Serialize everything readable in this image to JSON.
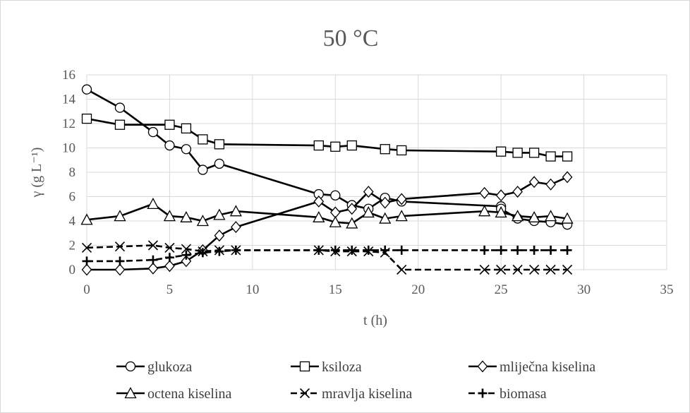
{
  "chart_data": {
    "type": "line",
    "title": "50 °C",
    "xlabel": "t (h)",
    "ylabel": "γ (g L⁻¹)",
    "xlim": [
      0,
      35
    ],
    "ylim": [
      0,
      16
    ],
    "x_ticks": [
      "0",
      "5",
      "10",
      "15",
      "20",
      "25",
      "30",
      "35"
    ],
    "y_ticks": [
      "0",
      "2",
      "4",
      "6",
      "8",
      "10",
      "12",
      "14",
      "16"
    ],
    "grid": "vertical and horizontal gridlines",
    "legend_position": "bottom",
    "series": [
      {
        "name": "glukoza",
        "marker": "circle",
        "line_style": "solid",
        "points": [
          [
            0,
            14.8
          ],
          [
            2,
            13.3
          ],
          [
            4,
            11.3
          ],
          [
            5,
            10.2
          ],
          [
            6,
            9.9
          ],
          [
            7,
            8.2
          ],
          [
            8,
            8.7
          ],
          [
            14,
            6.2
          ],
          [
            15,
            6.1
          ],
          [
            16,
            5.3
          ],
          [
            17,
            5.0
          ],
          [
            18,
            5.9
          ],
          [
            19,
            5.6
          ],
          [
            25,
            5.2
          ],
          [
            25,
            5.0
          ],
          [
            26,
            4.2
          ],
          [
            27,
            4.0
          ],
          [
            28,
            3.9
          ],
          [
            29,
            3.7
          ]
        ]
      },
      {
        "name": "ksiloza",
        "marker": "square",
        "line_style": "solid",
        "points": [
          [
            0,
            12.4
          ],
          [
            2,
            11.9
          ],
          [
            5,
            11.9
          ],
          [
            6,
            11.6
          ],
          [
            7,
            10.7
          ],
          [
            8,
            10.3
          ],
          [
            14,
            10.2
          ],
          [
            15,
            10.1
          ],
          [
            16,
            10.2
          ],
          [
            18,
            9.9
          ],
          [
            19,
            9.8
          ],
          [
            25,
            9.7
          ],
          [
            26,
            9.6
          ],
          [
            27,
            9.6
          ],
          [
            28,
            9.3
          ],
          [
            29,
            9.3
          ]
        ]
      },
      {
        "name": "mliječna kiselina",
        "marker": "diamond",
        "line_style": "solid",
        "points": [
          [
            0,
            0
          ],
          [
            2,
            0
          ],
          [
            4,
            0.1
          ],
          [
            5,
            0.3
          ],
          [
            6,
            0.7
          ],
          [
            7,
            1.6
          ],
          [
            8,
            2.8
          ],
          [
            9,
            3.5
          ],
          [
            14,
            5.6
          ],
          [
            15,
            4.7
          ],
          [
            16,
            5.0
          ],
          [
            17,
            6.4
          ],
          [
            18,
            5.5
          ],
          [
            19,
            5.8
          ],
          [
            24,
            6.3
          ],
          [
            25,
            6.1
          ],
          [
            26,
            6.4
          ],
          [
            27,
            7.2
          ],
          [
            28,
            7.0
          ],
          [
            29,
            7.6
          ]
        ]
      },
      {
        "name": "octena kiselina",
        "marker": "triangle",
        "line_style": "solid",
        "points": [
          [
            0,
            4.1
          ],
          [
            2,
            4.4
          ],
          [
            4,
            5.4
          ],
          [
            5,
            4.4
          ],
          [
            6,
            4.3
          ],
          [
            7,
            4.0
          ],
          [
            8,
            4.5
          ],
          [
            9,
            4.8
          ],
          [
            14,
            4.3
          ],
          [
            15,
            3.9
          ],
          [
            16,
            3.8
          ],
          [
            17,
            4.7
          ],
          [
            18,
            4.2
          ],
          [
            19,
            4.4
          ],
          [
            24,
            4.8
          ],
          [
            25,
            4.7
          ],
          [
            26,
            4.4
          ],
          [
            27,
            4.3
          ],
          [
            28,
            4.4
          ],
          [
            29,
            4.2
          ]
        ]
      },
      {
        "name": "mravlja kiselina",
        "marker": "x",
        "line_style": "dashed",
        "points": [
          [
            0,
            1.8
          ],
          [
            2,
            1.9
          ],
          [
            4,
            2.0
          ],
          [
            5,
            1.8
          ],
          [
            6,
            1.7
          ],
          [
            7,
            1.5
          ],
          [
            8,
            1.6
          ],
          [
            9,
            1.6
          ],
          [
            14,
            1.6
          ],
          [
            15,
            1.5
          ],
          [
            16,
            1.5
          ],
          [
            17,
            1.5
          ],
          [
            18,
            1.4
          ],
          [
            19,
            0
          ],
          [
            24,
            0
          ],
          [
            25,
            0
          ],
          [
            26,
            0
          ],
          [
            27,
            0
          ],
          [
            28,
            0
          ],
          [
            29,
            0
          ]
        ]
      },
      {
        "name": "biomasa",
        "marker": "plus",
        "line_style": "dashed",
        "points": [
          [
            0,
            0.7
          ],
          [
            2,
            0.7
          ],
          [
            4,
            0.8
          ],
          [
            5,
            1.0
          ],
          [
            6,
            1.2
          ],
          [
            7,
            1.4
          ],
          [
            8,
            1.5
          ],
          [
            9,
            1.6
          ],
          [
            14,
            1.6
          ],
          [
            15,
            1.6
          ],
          [
            16,
            1.6
          ],
          [
            17,
            1.6
          ],
          [
            18,
            1.6
          ],
          [
            19,
            1.6
          ],
          [
            24,
            1.6
          ],
          [
            25,
            1.6
          ],
          [
            26,
            1.6
          ],
          [
            27,
            1.6
          ],
          [
            28,
            1.6
          ],
          [
            29,
            1.6
          ]
        ]
      }
    ]
  }
}
